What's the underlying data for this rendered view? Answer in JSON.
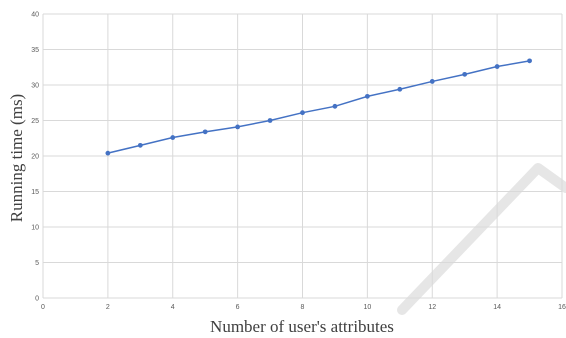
{
  "chart_data": {
    "type": "line",
    "title": "",
    "xlabel": "Number of user's attributes",
    "ylabel": "Running time (ms)",
    "xlim": [
      0,
      16
    ],
    "ylim": [
      0,
      40
    ],
    "xticks": [
      0,
      2,
      4,
      6,
      8,
      10,
      12,
      14,
      16
    ],
    "yticks": [
      0,
      5,
      10,
      15,
      20,
      25,
      30,
      35,
      40
    ],
    "grid": true,
    "legend": "none",
    "series": [
      {
        "color": "#4472c4",
        "x": [
          2,
          3,
          4,
          5,
          6,
          7,
          8,
          9,
          10,
          11,
          12,
          13,
          14,
          15
        ],
        "y": [
          20.4,
          21.5,
          22.6,
          23.4,
          24.1,
          25.0,
          26.1,
          27.0,
          28.4,
          29.4,
          30.5,
          31.5,
          32.6,
          33.4
        ]
      }
    ]
  }
}
